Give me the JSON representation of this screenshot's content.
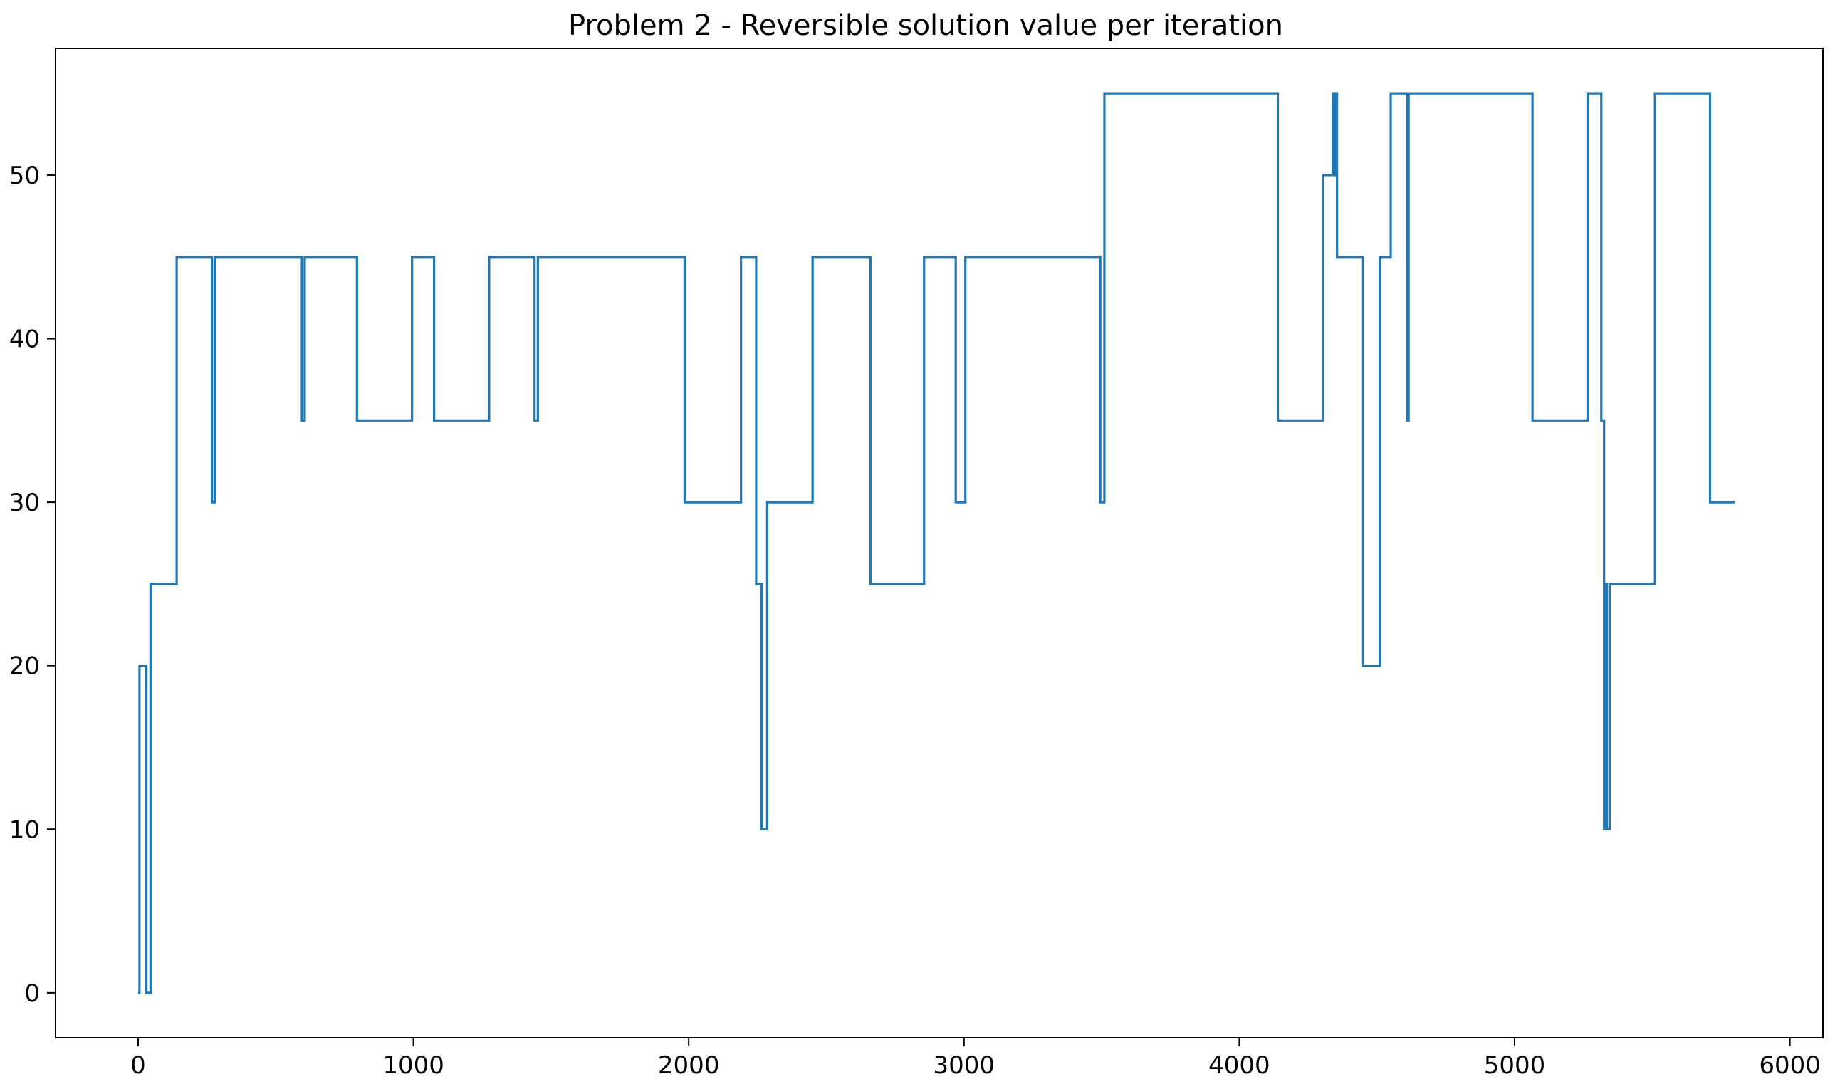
{
  "chart_data": {
    "type": "line",
    "title": "Problem 2 - Reversible solution value per iteration",
    "xlabel": "",
    "ylabel": "",
    "xlim": [
      -300,
      6120
    ],
    "ylim": [
      -2.75,
      57.75
    ],
    "xticks": [
      0,
      1000,
      2000,
      3000,
      4000,
      5000,
      6000
    ],
    "yticks": [
      0,
      10,
      20,
      30,
      40,
      50
    ],
    "grid": false,
    "line_color": "#1f77b4",
    "series": [
      {
        "step": [
          [
            0,
            0
          ],
          [
            5,
            20
          ],
          [
            30,
            0
          ],
          [
            45,
            25
          ],
          [
            140,
            45
          ],
          [
            268,
            30
          ],
          [
            278,
            45
          ],
          [
            595,
            35
          ],
          [
            605,
            45
          ],
          [
            795,
            35
          ],
          [
            995,
            45
          ],
          [
            1075,
            35
          ],
          [
            1275,
            45
          ],
          [
            1440,
            35
          ],
          [
            1452,
            45
          ],
          [
            1985,
            30
          ],
          [
            2190,
            45
          ],
          [
            2245,
            25
          ],
          [
            2265,
            10
          ],
          [
            2285,
            30
          ],
          [
            2450,
            45
          ],
          [
            2660,
            25
          ],
          [
            2855,
            45
          ],
          [
            2970,
            30
          ],
          [
            3005,
            45
          ],
          [
            3495,
            30
          ],
          [
            3510,
            55
          ],
          [
            4140,
            35
          ],
          [
            4305,
            50
          ],
          [
            4340,
            55
          ],
          [
            4345,
            50
          ],
          [
            4350,
            55
          ],
          [
            4355,
            45
          ],
          [
            4450,
            20
          ],
          [
            4510,
            45
          ],
          [
            4550,
            55
          ],
          [
            4610,
            35
          ],
          [
            4615,
            55
          ],
          [
            5065,
            35
          ],
          [
            5265,
            55
          ],
          [
            5315,
            35
          ],
          [
            5325,
            10
          ],
          [
            5330,
            25
          ],
          [
            5335,
            10
          ],
          [
            5345,
            25
          ],
          [
            5510,
            55
          ],
          [
            5710,
            30
          ],
          [
            5800,
            30
          ]
        ]
      }
    ]
  }
}
